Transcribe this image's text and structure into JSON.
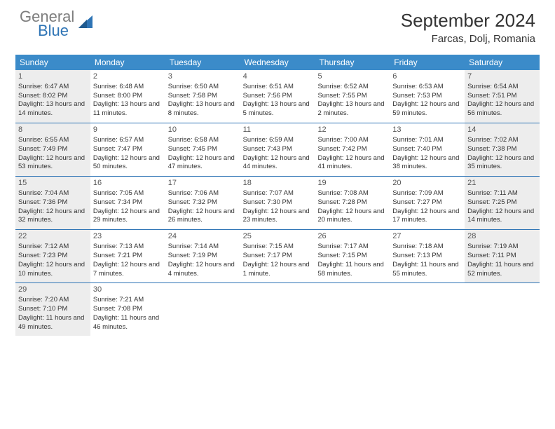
{
  "brand": {
    "part1": "General",
    "part2": "Blue"
  },
  "title": "September 2024",
  "location": "Farcas, Dolj, Romania",
  "colors": {
    "header_bg": "#3b8bc9",
    "rule": "#2e74b5",
    "shade": "#ededed",
    "text": "#333333",
    "logo_gray": "#7d7d7d",
    "logo_blue": "#2e74b5"
  },
  "dow": [
    "Sunday",
    "Monday",
    "Tuesday",
    "Wednesday",
    "Thursday",
    "Friday",
    "Saturday"
  ],
  "weeks": [
    [
      {
        "n": "1",
        "shade": true,
        "sr": "6:47 AM",
        "ss": "8:02 PM",
        "dl": "13 hours and 14 minutes."
      },
      {
        "n": "2",
        "shade": false,
        "sr": "6:48 AM",
        "ss": "8:00 PM",
        "dl": "13 hours and 11 minutes."
      },
      {
        "n": "3",
        "shade": false,
        "sr": "6:50 AM",
        "ss": "7:58 PM",
        "dl": "13 hours and 8 minutes."
      },
      {
        "n": "4",
        "shade": false,
        "sr": "6:51 AM",
        "ss": "7:56 PM",
        "dl": "13 hours and 5 minutes."
      },
      {
        "n": "5",
        "shade": false,
        "sr": "6:52 AM",
        "ss": "7:55 PM",
        "dl": "13 hours and 2 minutes."
      },
      {
        "n": "6",
        "shade": false,
        "sr": "6:53 AM",
        "ss": "7:53 PM",
        "dl": "12 hours and 59 minutes."
      },
      {
        "n": "7",
        "shade": true,
        "sr": "6:54 AM",
        "ss": "7:51 PM",
        "dl": "12 hours and 56 minutes."
      }
    ],
    [
      {
        "n": "8",
        "shade": true,
        "sr": "6:55 AM",
        "ss": "7:49 PM",
        "dl": "12 hours and 53 minutes."
      },
      {
        "n": "9",
        "shade": false,
        "sr": "6:57 AM",
        "ss": "7:47 PM",
        "dl": "12 hours and 50 minutes."
      },
      {
        "n": "10",
        "shade": false,
        "sr": "6:58 AM",
        "ss": "7:45 PM",
        "dl": "12 hours and 47 minutes."
      },
      {
        "n": "11",
        "shade": false,
        "sr": "6:59 AM",
        "ss": "7:43 PM",
        "dl": "12 hours and 44 minutes."
      },
      {
        "n": "12",
        "shade": false,
        "sr": "7:00 AM",
        "ss": "7:42 PM",
        "dl": "12 hours and 41 minutes."
      },
      {
        "n": "13",
        "shade": false,
        "sr": "7:01 AM",
        "ss": "7:40 PM",
        "dl": "12 hours and 38 minutes."
      },
      {
        "n": "14",
        "shade": true,
        "sr": "7:02 AM",
        "ss": "7:38 PM",
        "dl": "12 hours and 35 minutes."
      }
    ],
    [
      {
        "n": "15",
        "shade": true,
        "sr": "7:04 AM",
        "ss": "7:36 PM",
        "dl": "12 hours and 32 minutes."
      },
      {
        "n": "16",
        "shade": false,
        "sr": "7:05 AM",
        "ss": "7:34 PM",
        "dl": "12 hours and 29 minutes."
      },
      {
        "n": "17",
        "shade": false,
        "sr": "7:06 AM",
        "ss": "7:32 PM",
        "dl": "12 hours and 26 minutes."
      },
      {
        "n": "18",
        "shade": false,
        "sr": "7:07 AM",
        "ss": "7:30 PM",
        "dl": "12 hours and 23 minutes."
      },
      {
        "n": "19",
        "shade": false,
        "sr": "7:08 AM",
        "ss": "7:28 PM",
        "dl": "12 hours and 20 minutes."
      },
      {
        "n": "20",
        "shade": false,
        "sr": "7:09 AM",
        "ss": "7:27 PM",
        "dl": "12 hours and 17 minutes."
      },
      {
        "n": "21",
        "shade": true,
        "sr": "7:11 AM",
        "ss": "7:25 PM",
        "dl": "12 hours and 14 minutes."
      }
    ],
    [
      {
        "n": "22",
        "shade": true,
        "sr": "7:12 AM",
        "ss": "7:23 PM",
        "dl": "12 hours and 10 minutes."
      },
      {
        "n": "23",
        "shade": false,
        "sr": "7:13 AM",
        "ss": "7:21 PM",
        "dl": "12 hours and 7 minutes."
      },
      {
        "n": "24",
        "shade": false,
        "sr": "7:14 AM",
        "ss": "7:19 PM",
        "dl": "12 hours and 4 minutes."
      },
      {
        "n": "25",
        "shade": false,
        "sr": "7:15 AM",
        "ss": "7:17 PM",
        "dl": "12 hours and 1 minute."
      },
      {
        "n": "26",
        "shade": false,
        "sr": "7:17 AM",
        "ss": "7:15 PM",
        "dl": "11 hours and 58 minutes."
      },
      {
        "n": "27",
        "shade": false,
        "sr": "7:18 AM",
        "ss": "7:13 PM",
        "dl": "11 hours and 55 minutes."
      },
      {
        "n": "28",
        "shade": true,
        "sr": "7:19 AM",
        "ss": "7:11 PM",
        "dl": "11 hours and 52 minutes."
      }
    ],
    [
      {
        "n": "29",
        "shade": true,
        "sr": "7:20 AM",
        "ss": "7:10 PM",
        "dl": "11 hours and 49 minutes."
      },
      {
        "n": "30",
        "shade": false,
        "sr": "7:21 AM",
        "ss": "7:08 PM",
        "dl": "11 hours and 46 minutes."
      },
      {
        "n": "",
        "shade": false
      },
      {
        "n": "",
        "shade": false
      },
      {
        "n": "",
        "shade": false
      },
      {
        "n": "",
        "shade": false
      },
      {
        "n": "",
        "shade": false
      }
    ]
  ],
  "labels": {
    "sunrise": "Sunrise:",
    "sunset": "Sunset:",
    "daylight": "Daylight:"
  }
}
